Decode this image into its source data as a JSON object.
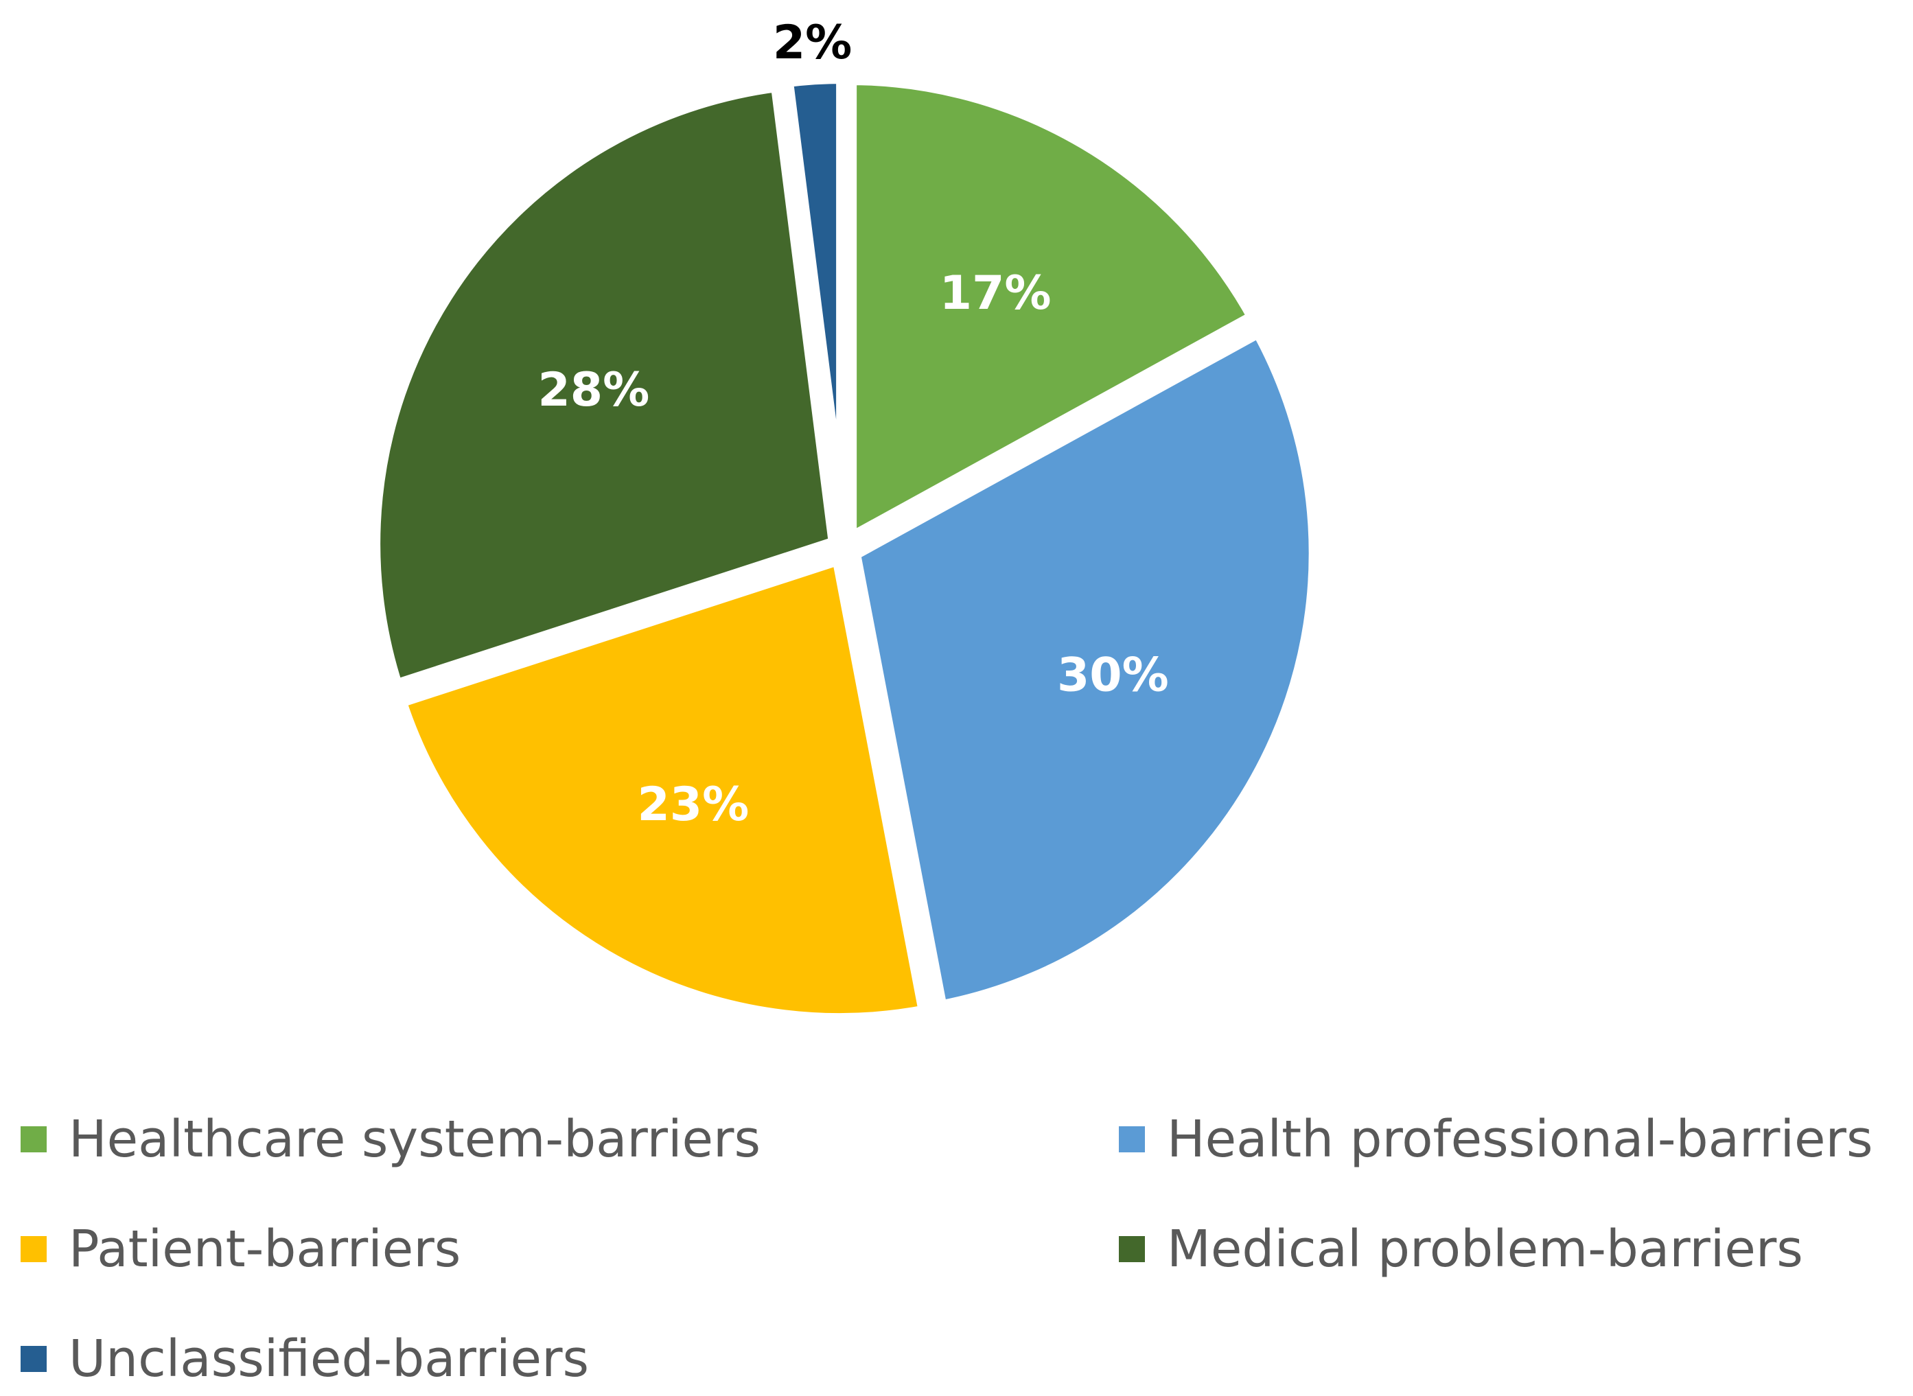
{
  "chart_data": {
    "type": "pie",
    "title": "",
    "slices": [
      {
        "name": "Healthcare system-barriers",
        "value": 17,
        "label": "17%",
        "color": "#70AD47",
        "label_color": "#FFFFFF"
      },
      {
        "name": "Health professional-barriers",
        "value": 30,
        "label": "30%",
        "color": "#5B9BD5",
        "label_color": "#FFFFFF"
      },
      {
        "name": "Patient-barriers",
        "value": 23,
        "label": "23%",
        "color": "#FFC000",
        "label_color": "#FFFFFF"
      },
      {
        "name": "Medical problem-barriers",
        "value": 28,
        "label": "28%",
        "color": "#43682B",
        "label_color": "#FFFFFF"
      },
      {
        "name": "Unclassified-barriers",
        "value": 2,
        "label": "2%",
        "color": "#255E91",
        "label_color": "#000000"
      }
    ],
    "exploded": true,
    "start_angle": "12 o'clock, clockwise",
    "legend_position": "bottom"
  }
}
